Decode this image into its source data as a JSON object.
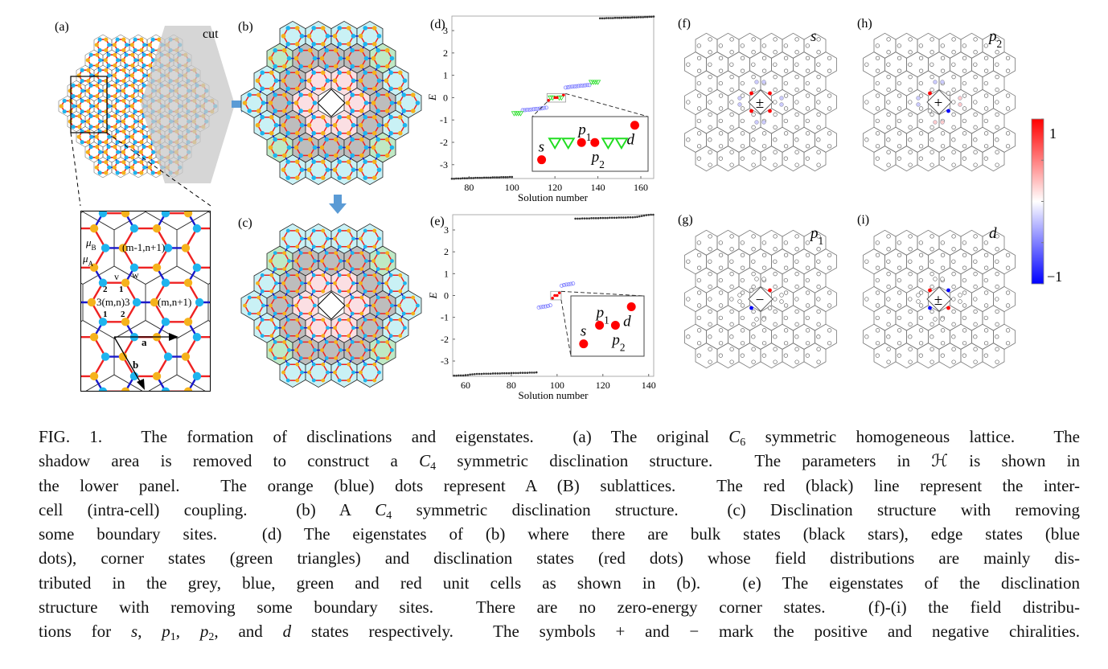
{
  "figure": {
    "panel_labels": {
      "a": "(a)",
      "b": "(b)",
      "c": "(c)",
      "d": "(d)",
      "e": "(e)",
      "f": "(f)",
      "g": "(g)",
      "h": "(h)",
      "i": "(i)"
    },
    "panel_a": {
      "cut_label": "cut",
      "inset": {
        "mu_b": {
          "sym": "μ",
          "sub": "B"
        },
        "mu_a": {
          "sym": "μ",
          "sub": "A"
        },
        "cell_upper": "(m-1,n+1)",
        "cell_center": "3(m,n)3",
        "cell_right": "(m,n+1)",
        "v": "v",
        "w": "w",
        "site_2_top": "2",
        "site_1_top": "1",
        "site_1_bottom": "1",
        "site_2_bottom": "2",
        "vec_a": "a",
        "vec_b": "b"
      }
    },
    "colors": {
      "sublattice_a": "#f5b21c",
      "sublattice_b": "#1eb4ee",
      "inter_cell_bond": "#ee2222",
      "intra_cell_bond": "#1a1acc",
      "bulk_cell": "#bdbdbd",
      "edge_cell": "#c9f1f5",
      "corner_cell": "#bfe9c5",
      "disclination_cell": "#fbdfe3",
      "arrow": "#5b9bd5"
    },
    "field_plots": [
      {
        "panel": "f",
        "state": "s",
        "state_sub": "",
        "symbol": "±",
        "inner": [
          1,
          1,
          1,
          1
        ],
        "outer": [
          -0.2,
          -0.2,
          -0.2,
          -0.2
        ]
      },
      {
        "panel": "h",
        "state": "p",
        "state_sub": "2",
        "symbol": "+",
        "inner": [
          0,
          1,
          0,
          -1
        ],
        "outer": [
          -0.2,
          -0.2,
          0.2,
          0.2
        ]
      },
      {
        "panel": "g",
        "state": "p",
        "state_sub": "1",
        "symbol": "−",
        "inner": [
          1,
          0,
          -1,
          0
        ],
        "outer": [
          0,
          0,
          0,
          0
        ]
      },
      {
        "panel": "i",
        "state": "d",
        "state_sub": "",
        "symbol": "±",
        "inner": [
          -1,
          1,
          -1,
          1
        ],
        "outer": [
          0,
          0,
          0,
          0
        ]
      }
    ],
    "colorbar": {
      "max_label": "1",
      "min_label": "−1",
      "range": [
        -1,
        1
      ],
      "colors": [
        "#ff0000",
        "#ffffff",
        "#0000ff"
      ]
    }
  },
  "chart_data": [
    {
      "type": "scatter",
      "panel": "(d)",
      "xlabel": "Solution number",
      "ylabel": "E",
      "xlim": [
        72,
        166
      ],
      "ylim": [
        -3.62,
        3.65
      ],
      "xticks": [
        80,
        100,
        120,
        140,
        160
      ],
      "yticks": [
        -3,
        -2,
        -1,
        0,
        1,
        2,
        3
      ],
      "grid": false,
      "series": [
        {
          "role": "bulk states",
          "marker": "black star",
          "color": "#333333",
          "x": [
            72,
            73,
            74,
            75,
            76,
            77,
            78,
            79,
            80,
            81,
            82,
            83,
            84,
            85,
            86,
            87,
            88,
            89,
            90,
            91,
            92,
            93,
            94,
            95,
            96,
            97,
            98,
            99,
            100,
            141,
            142,
            143,
            144,
            145,
            146,
            147,
            148,
            149,
            150,
            151,
            152,
            153,
            154,
            155,
            156,
            157,
            158,
            159,
            160,
            161,
            162,
            163,
            164,
            165,
            166
          ],
          "y": [
            -3.63,
            -3.63,
            -3.62,
            -3.62,
            -3.62,
            -3.61,
            -3.61,
            -3.61,
            -3.6,
            -3.6,
            -3.6,
            -3.59,
            -3.59,
            -3.59,
            -3.59,
            -3.58,
            -3.58,
            -3.58,
            -3.58,
            -3.57,
            -3.57,
            -3.57,
            -3.57,
            -3.56,
            -3.56,
            -3.56,
            -3.56,
            -3.55,
            -3.55,
            3.55,
            3.55,
            3.55,
            3.56,
            3.56,
            3.56,
            3.56,
            3.57,
            3.57,
            3.57,
            3.57,
            3.58,
            3.58,
            3.58,
            3.58,
            3.59,
            3.59,
            3.59,
            3.6,
            3.6,
            3.6,
            3.61,
            3.61,
            3.62,
            3.62,
            3.63
          ]
        },
        {
          "role": "edge states",
          "marker": "blue open circle",
          "color": "#6f6fff",
          "x": [
            105,
            106,
            107,
            108,
            109,
            110,
            111,
            112,
            113,
            114,
            115,
            116,
            125,
            126,
            127,
            128,
            129,
            130,
            131,
            132,
            133,
            134,
            135,
            136
          ],
          "y": [
            -0.56,
            -0.56,
            -0.55,
            -0.54,
            -0.53,
            -0.52,
            -0.51,
            -0.5,
            -0.49,
            -0.48,
            -0.46,
            -0.45,
            0.45,
            0.46,
            0.48,
            0.49,
            0.5,
            0.51,
            0.52,
            0.53,
            0.54,
            0.55,
            0.56,
            0.56
          ]
        },
        {
          "role": "corner states",
          "marker": "green open triangle",
          "color": "#22dd22",
          "x": [
            101,
            102,
            103,
            104,
            118,
            119,
            122,
            123,
            137,
            138,
            139,
            140
          ],
          "y": [
            -0.7,
            -0.7,
            -0.7,
            -0.7,
            0,
            0,
            0,
            0,
            0.7,
            0.7,
            0.7,
            0.7
          ]
        },
        {
          "role": "disclination states",
          "marker": "red dot",
          "color": "#ff0000",
          "x": [
            117,
            120,
            121,
            124
          ],
          "y": [
            -0.12,
            0,
            0,
            0.12
          ],
          "labels": [
            {
              "text": "s",
              "sub": ""
            },
            {
              "text": "p",
              "sub": "1"
            },
            {
              "text": "p",
              "sub": "2"
            },
            {
              "text": "d",
              "sub": ""
            }
          ]
        }
      ],
      "inset": {
        "xlim": [
          116.3,
          125
        ],
        "ylim": [
          -0.2,
          0.18
        ]
      }
    },
    {
      "type": "scatter",
      "panel": "(e)",
      "xlabel": "Solution number",
      "ylabel": "E",
      "xlim": [
        54.4,
        142.2
      ],
      "ylim": [
        -3.7,
        3.7
      ],
      "xticks": [
        60,
        80,
        100,
        120,
        140
      ],
      "yticks": [
        -3,
        -2,
        -1,
        0,
        1,
        2,
        3
      ],
      "grid": false,
      "series": [
        {
          "role": "bulk states",
          "marker": "black star",
          "color": "#333333",
          "x": [
            55,
            56,
            57,
            58,
            59,
            60,
            61,
            62,
            63,
            64,
            65,
            66,
            67,
            68,
            69,
            70,
            71,
            72,
            73,
            74,
            75,
            76,
            77,
            78,
            79,
            80,
            81,
            82,
            83,
            84,
            85,
            86,
            87,
            88,
            89,
            90,
            91,
            108,
            109,
            110,
            111,
            112,
            113,
            114,
            115,
            116,
            117,
            118,
            119,
            120,
            121,
            122,
            123,
            124,
            125,
            126,
            127,
            128,
            129,
            130,
            131,
            132,
            133,
            134,
            135,
            136,
            137,
            138,
            139,
            140,
            141,
            142
          ],
          "y": [
            -3.67,
            -3.67,
            -3.66,
            -3.66,
            -3.66,
            -3.65,
            -3.64,
            -3.62,
            -3.61,
            -3.6,
            -3.59,
            -3.59,
            -3.59,
            -3.58,
            -3.58,
            -3.58,
            -3.58,
            -3.57,
            -3.57,
            -3.57,
            -3.57,
            -3.56,
            -3.56,
            -3.56,
            -3.56,
            -3.55,
            -3.55,
            -3.55,
            -3.55,
            -3.54,
            -3.54,
            -3.54,
            -3.54,
            -3.53,
            -3.53,
            -3.53,
            -3.52,
            3.52,
            3.52,
            3.52,
            3.53,
            3.53,
            3.53,
            3.53,
            3.54,
            3.54,
            3.54,
            3.54,
            3.55,
            3.55,
            3.55,
            3.55,
            3.56,
            3.56,
            3.56,
            3.56,
            3.57,
            3.57,
            3.57,
            3.57,
            3.58,
            3.58,
            3.58,
            3.59,
            3.6,
            3.62,
            3.64,
            3.66,
            3.68,
            3.69,
            3.7,
            3.7
          ]
        },
        {
          "role": "edge states",
          "marker": "blue open circle",
          "color": "#6f6fff",
          "x": [
            92,
            93,
            94,
            95,
            96,
            97,
            102,
            103,
            104,
            105,
            106,
            107
          ],
          "y": [
            -0.55,
            -0.53,
            -0.51,
            -0.5,
            -0.48,
            -0.45,
            0.45,
            0.48,
            0.5,
            0.51,
            0.53,
            0.55
          ]
        },
        {
          "role": "disclination states",
          "marker": "red dot",
          "color": "#ff0000",
          "x": [
            98,
            99,
            100,
            101
          ],
          "y": [
            -0.12,
            0,
            0,
            0.12
          ],
          "labels": [
            {
              "text": "s",
              "sub": ""
            },
            {
              "text": "p",
              "sub": "1"
            },
            {
              "text": "p",
              "sub": "2"
            },
            {
              "text": "d",
              "sub": ""
            }
          ]
        }
      ],
      "inset": {
        "xlim": [
          97.2,
          101.8
        ],
        "ylim": [
          -0.2,
          0.19
        ]
      }
    }
  ],
  "caption": {
    "lines": [
      [
        [
          "FIG. 1.  The formation of disclinations and eigenstates.  (a) The original ",
          ""
        ],
        [
          "C",
          "i"
        ],
        [
          "6",
          "sub"
        ],
        [
          " symmetric homogeneous lattice.  The",
          ""
        ]
      ],
      [
        [
          "shadow area is removed to construct a ",
          ""
        ],
        [
          "C",
          "i"
        ],
        [
          "4",
          "sub"
        ],
        [
          " symmetric disclination structure.  The parameters in ",
          ""
        ],
        [
          "ℋ",
          ""
        ],
        [
          " is shown in",
          ""
        ]
      ],
      [
        [
          "the lower panel.  The orange (blue) dots represent A (B) sublattices.  The red (black) line represent the inter-",
          ""
        ]
      ],
      [
        [
          "cell (intra-cell) coupling.  (b) A ",
          ""
        ],
        [
          "C",
          "i"
        ],
        [
          "4",
          "sub"
        ],
        [
          " symmetric disclination structure.  (c) Disclination structure with removing",
          ""
        ]
      ],
      [
        [
          "some boundary sites.  (d) The eigenstates of (b) where there are bulk states (black stars), edge states (blue",
          ""
        ]
      ],
      [
        [
          "dots), corner states (green triangles) and disclination states (red dots) whose field distributions are mainly dis-",
          ""
        ]
      ],
      [
        [
          "tributed in the grey, blue, green and red unit cells as shown in (b).  (e) The eigenstates of the disclination",
          ""
        ]
      ],
      [
        [
          "structure with removing some boundary sites.  There are no zero-energy corner states.  (f)-(i) the field distribu-",
          ""
        ]
      ],
      [
        [
          "tions for ",
          ""
        ],
        [
          "s",
          "i"
        ],
        [
          ", ",
          ""
        ],
        [
          "p",
          "i"
        ],
        [
          "1",
          "sub"
        ],
        [
          ", ",
          ""
        ],
        [
          "p",
          "i"
        ],
        [
          "2",
          "sub"
        ],
        [
          ", and ",
          ""
        ],
        [
          "d",
          "i"
        ],
        [
          " states respectively.  The symbols + and − mark the positive and negative chiralities.",
          ""
        ]
      ]
    ]
  }
}
